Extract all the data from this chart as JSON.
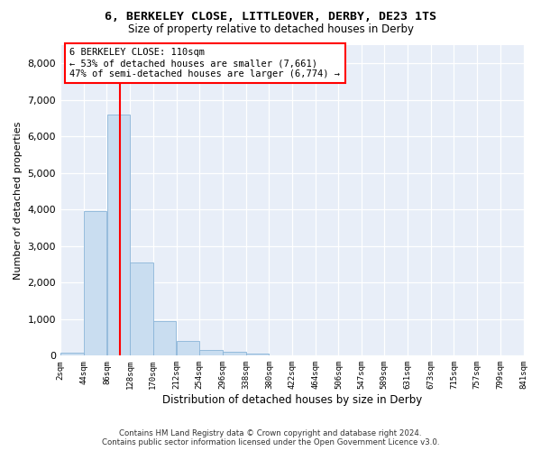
{
  "title1": "6, BERKELEY CLOSE, LITTLEOVER, DERBY, DE23 1TS",
  "title2": "Size of property relative to detached houses in Derby",
  "xlabel": "Distribution of detached houses by size in Derby",
  "ylabel": "Number of detached properties",
  "annotation_line1": "6 BERKELEY CLOSE: 110sqm",
  "annotation_line2": "← 53% of detached houses are smaller (7,661)",
  "annotation_line3": "47% of semi-detached houses are larger (6,774) →",
  "footer1": "Contains HM Land Registry data © Crown copyright and database right 2024.",
  "footer2": "Contains public sector information licensed under the Open Government Licence v3.0.",
  "bar_color": "#c9ddf0",
  "bar_edge_color": "#8ab4d8",
  "background_color": "#e8eef8",
  "bin_edges": [
    2,
    44,
    86,
    128,
    170,
    212,
    254,
    296,
    338,
    380,
    422,
    464,
    506,
    547,
    589,
    631,
    673,
    715,
    757,
    799,
    841
  ],
  "bin_labels": [
    "2sqm",
    "44sqm",
    "86sqm",
    "128sqm",
    "170sqm",
    "212sqm",
    "254sqm",
    "296sqm",
    "338sqm",
    "380sqm",
    "422sqm",
    "464sqm",
    "506sqm",
    "547sqm",
    "589sqm",
    "631sqm",
    "673sqm",
    "715sqm",
    "757sqm",
    "799sqm",
    "841sqm"
  ],
  "bar_heights": [
    80,
    3950,
    6600,
    2550,
    950,
    400,
    150,
    100,
    60,
    0,
    0,
    0,
    0,
    0,
    0,
    0,
    0,
    0,
    0,
    0
  ],
  "ylim": [
    0,
    8500
  ],
  "yticks": [
    0,
    1000,
    2000,
    3000,
    4000,
    5000,
    6000,
    7000,
    8000
  ],
  "red_line_x": 110
}
